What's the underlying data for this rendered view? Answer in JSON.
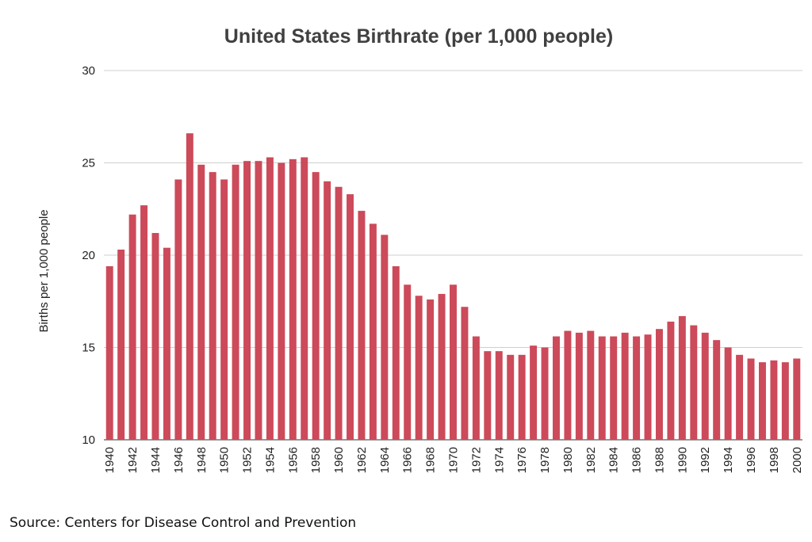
{
  "chart_data": {
    "type": "bar",
    "title": "United States Birthrate (per 1,000 people)",
    "ylabel": "Births per 1,000 people",
    "xlabel": "",
    "ylim": [
      10,
      30
    ],
    "yticks": [
      10,
      15,
      20,
      25,
      30
    ],
    "grid": true,
    "bar_color": "#cc4a5a",
    "categories": [
      "1940",
      "1941",
      "1942",
      "1943",
      "1944",
      "1945",
      "1946",
      "1947",
      "1948",
      "1949",
      "1950",
      "1951",
      "1952",
      "1953",
      "1954",
      "1955",
      "1956",
      "1957",
      "1958",
      "1959",
      "1960",
      "1961",
      "1962",
      "1963",
      "1964",
      "1965",
      "1966",
      "1967",
      "1968",
      "1969",
      "1970",
      "1971",
      "1972",
      "1973",
      "1974",
      "1975",
      "1976",
      "1977",
      "1978",
      "1979",
      "1980",
      "1981",
      "1982",
      "1983",
      "1984",
      "1985",
      "1986",
      "1987",
      "1988",
      "1989",
      "1990",
      "1991",
      "1992",
      "1993",
      "1994",
      "1995",
      "1996",
      "1997",
      "1998",
      "1999",
      "2000"
    ],
    "xtick_labels": [
      "1940",
      "1942",
      "1944",
      "1946",
      "1948",
      "1950",
      "1952",
      "1954",
      "1956",
      "1958",
      "1960",
      "1962",
      "1964",
      "1966",
      "1968",
      "1970",
      "1972",
      "1974",
      "1976",
      "1978",
      "1980",
      "1982",
      "1984",
      "1986",
      "1988",
      "1990",
      "1992",
      "1994",
      "1996",
      "1998",
      "2000"
    ],
    "values": [
      19.4,
      20.3,
      22.2,
      22.7,
      21.2,
      20.4,
      24.1,
      26.6,
      24.9,
      24.5,
      24.1,
      24.9,
      25.1,
      25.1,
      25.3,
      25.0,
      25.2,
      25.3,
      24.5,
      24.0,
      23.7,
      23.3,
      22.4,
      21.7,
      21.1,
      19.4,
      18.4,
      17.8,
      17.6,
      17.9,
      18.4,
      17.2,
      15.6,
      14.8,
      14.8,
      14.6,
      14.6,
      15.1,
      15.0,
      15.6,
      15.9,
      15.8,
      15.9,
      15.6,
      15.6,
      15.8,
      15.6,
      15.7,
      16.0,
      16.4,
      16.7,
      16.2,
      15.8,
      15.4,
      15.0,
      14.6,
      14.4,
      14.2,
      14.3,
      14.2,
      14.4
    ]
  },
  "source_text": "Source: Centers for Disease Control and Prevention"
}
